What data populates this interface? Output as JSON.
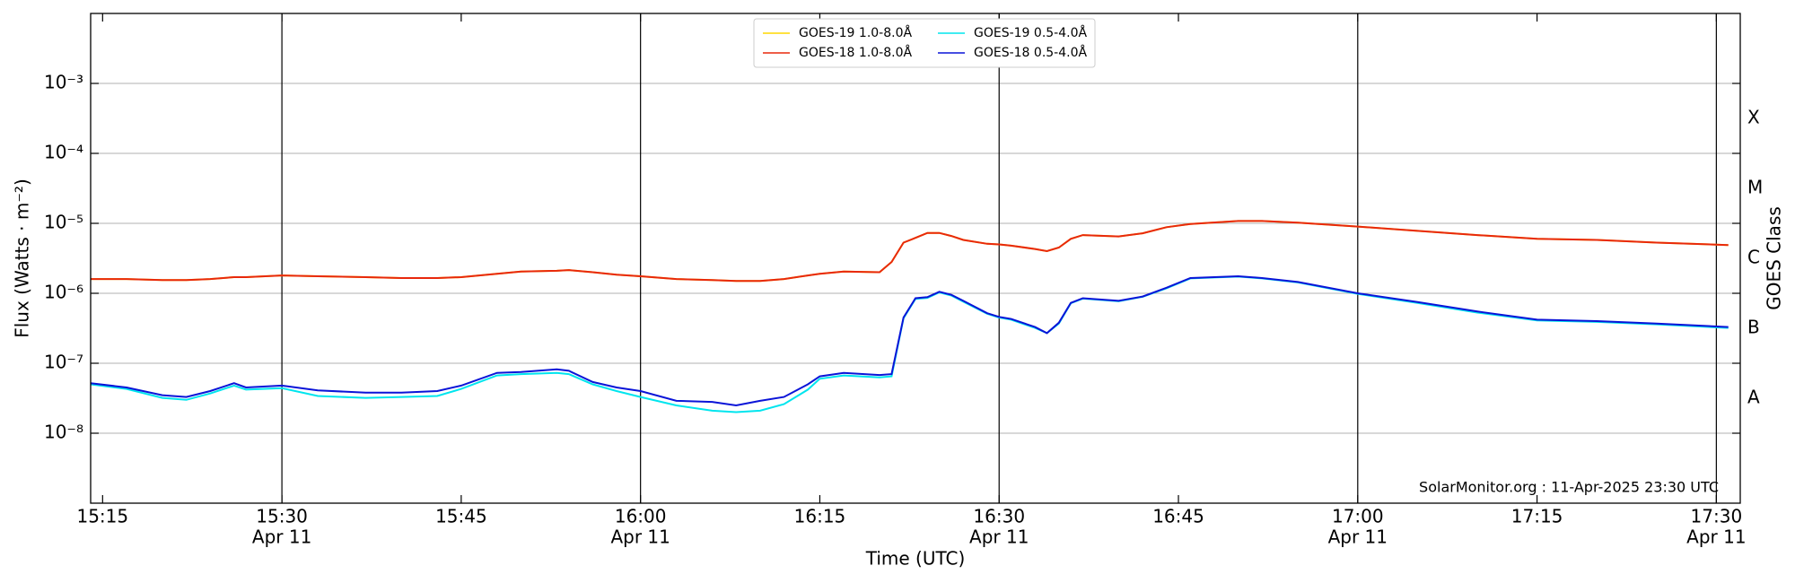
{
  "chart_data": {
    "type": "line",
    "y_label": "Flux (Watts · m⁻²)",
    "x_label": "Time (UTC)",
    "y2_label": "GOES Class",
    "annotation": "SolarMonitor.org : 11-Apr-2025 23:30 UTC",
    "log_y": true,
    "grid": true,
    "legend_position": "top-center",
    "xlim": [
      "15:14",
      "17:32"
    ],
    "xticks": [
      "15:15",
      "15:30",
      "15:45",
      "16:00",
      "16:15",
      "16:30",
      "16:45",
      "17:00",
      "17:15",
      "17:30"
    ],
    "xtick_dates": [
      null,
      "Apr 11",
      null,
      "Apr 11",
      null,
      "Apr 11",
      null,
      "Apr 11",
      null,
      "Apr 11"
    ],
    "ylim": [
      1e-09,
      0.01
    ],
    "yticks": [
      {
        "value": 1e-08,
        "label": "10⁻⁸"
      },
      {
        "value": 1e-07,
        "label": "10⁻⁷"
      },
      {
        "value": 1e-06,
        "label": "10⁻⁶"
      },
      {
        "value": 1e-05,
        "label": "10⁻⁵"
      },
      {
        "value": 0.0001,
        "label": "10⁻⁴"
      },
      {
        "value": 0.001,
        "label": "10⁻³"
      }
    ],
    "y2lim": [
      1e-09,
      0.01
    ],
    "y2ticks": [
      {
        "value": 3.16e-08,
        "label": "A"
      },
      {
        "value": 3.16e-07,
        "label": "B"
      },
      {
        "value": 3.16e-06,
        "label": "C"
      },
      {
        "value": 3.16e-05,
        "label": "M"
      },
      {
        "value": 0.000316,
        "label": "X"
      }
    ],
    "x": [
      "15:14",
      "15:17",
      "15:20",
      "15:22",
      "15:24",
      "15:26",
      "15:27",
      "15:30",
      "15:33",
      "15:37",
      "15:40",
      "15:43",
      "15:45",
      "15:48",
      "15:50",
      "15:53",
      "15:54",
      "15:56",
      "15:58",
      "16:00",
      "16:03",
      "16:06",
      "16:08",
      "16:10",
      "16:12",
      "16:14",
      "16:15",
      "16:17",
      "16:20",
      "16:21",
      "16:22",
      "16:23",
      "16:24",
      "16:25",
      "16:26",
      "16:27",
      "16:29",
      "16:30",
      "16:31",
      "16:33",
      "16:34",
      "16:35",
      "16:36",
      "16:37",
      "16:40",
      "16:42",
      "16:44",
      "16:46",
      "16:50",
      "16:52",
      "16:55",
      "17:00",
      "17:05",
      "17:10",
      "17:15",
      "17:20",
      "17:25",
      "17:31"
    ],
    "series": [
      {
        "name": "GOES-19 1.0-8.0Å",
        "color": "#ffd700",
        "values": [
          1.6e-06,
          1.6e-06,
          1.55e-06,
          1.55e-06,
          1.6e-06,
          1.7e-06,
          1.7e-06,
          1.8e-06,
          1.75e-06,
          1.7e-06,
          1.65e-06,
          1.65e-06,
          1.7e-06,
          1.9e-06,
          2.05e-06,
          2.1e-06,
          2.15e-06,
          2e-06,
          1.85e-06,
          1.75e-06,
          1.6e-06,
          1.55e-06,
          1.5e-06,
          1.5e-06,
          1.6e-06,
          1.8e-06,
          1.9e-06,
          2.05e-06,
          2e-06,
          2.8e-06,
          5.3e-06,
          6.2e-06,
          7.3e-06,
          7.3e-06,
          6.6e-06,
          5.8e-06,
          5.1e-06,
          5e-06,
          4.8e-06,
          4.3e-06,
          4e-06,
          4.5e-06,
          6e-06,
          6.8e-06,
          6.5e-06,
          7.2e-06,
          8.8e-06,
          9.8e-06,
          1.08e-05,
          1.08e-05,
          1.02e-05,
          9e-06,
          7.8e-06,
          6.8e-06,
          6e-06,
          5.8e-06,
          5.3e-06,
          4.9e-06
        ]
      },
      {
        "name": "GOES-18 1.0-8.0Å",
        "color": "#e8280c",
        "values": [
          1.6e-06,
          1.6e-06,
          1.55e-06,
          1.55e-06,
          1.6e-06,
          1.7e-06,
          1.7e-06,
          1.8e-06,
          1.75e-06,
          1.7e-06,
          1.65e-06,
          1.65e-06,
          1.7e-06,
          1.9e-06,
          2.05e-06,
          2.1e-06,
          2.15e-06,
          2e-06,
          1.85e-06,
          1.75e-06,
          1.6e-06,
          1.55e-06,
          1.5e-06,
          1.5e-06,
          1.6e-06,
          1.8e-06,
          1.9e-06,
          2.05e-06,
          2e-06,
          2.8e-06,
          5.3e-06,
          6.2e-06,
          7.3e-06,
          7.3e-06,
          6.6e-06,
          5.8e-06,
          5.1e-06,
          5e-06,
          4.8e-06,
          4.3e-06,
          4e-06,
          4.5e-06,
          6e-06,
          6.8e-06,
          6.5e-06,
          7.2e-06,
          8.8e-06,
          9.8e-06,
          1.08e-05,
          1.08e-05,
          1.02e-05,
          9e-06,
          7.8e-06,
          6.8e-06,
          6e-06,
          5.8e-06,
          5.3e-06,
          4.9e-06
        ]
      },
      {
        "name": "GOES-19 0.5-4.0Å",
        "color": "#00e5ee",
        "values": [
          5e-08,
          4.3e-08,
          3.2e-08,
          3e-08,
          3.7e-08,
          4.8e-08,
          4.2e-08,
          4.4e-08,
          3.4e-08,
          3.2e-08,
          3.3e-08,
          3.4e-08,
          4.3e-08,
          6.7e-08,
          7e-08,
          7.3e-08,
          7e-08,
          5e-08,
          4e-08,
          3.3e-08,
          2.5e-08,
          2.1e-08,
          2e-08,
          2.1e-08,
          2.6e-08,
          4.2e-08,
          6e-08,
          6.7e-08,
          6.3e-08,
          6.5e-08,
          4.4e-07,
          8.3e-07,
          8.6e-07,
          1.03e-06,
          9.3e-07,
          7.6e-07,
          5.1e-07,
          4.5e-07,
          4.2e-07,
          3.2e-07,
          2.7e-07,
          3.7e-07,
          7.2e-07,
          8.4e-07,
          7.7e-07,
          8.9e-07,
          1.18e-06,
          1.63e-06,
          1.73e-06,
          1.63e-06,
          1.43e-06,
          9.8e-07,
          7.3e-07,
          5.3e-07,
          4.1e-07,
          3.9e-07,
          3.6e-07,
          3.2e-07
        ]
      },
      {
        "name": "GOES-18 0.5-4.0Å",
        "color": "#0a14d8",
        "values": [
          5.2e-08,
          4.5e-08,
          3.5e-08,
          3.3e-08,
          4e-08,
          5.2e-08,
          4.5e-08,
          4.8e-08,
          4.1e-08,
          3.8e-08,
          3.8e-08,
          4e-08,
          4.8e-08,
          7.3e-08,
          7.5e-08,
          8.2e-08,
          7.8e-08,
          5.4e-08,
          4.5e-08,
          4e-08,
          2.9e-08,
          2.8e-08,
          2.5e-08,
          2.9e-08,
          3.3e-08,
          5e-08,
          6.5e-08,
          7.3e-08,
          6.8e-08,
          7e-08,
          4.5e-07,
          8.5e-07,
          8.8e-07,
          1.05e-06,
          9.5e-07,
          7.8e-07,
          5.2e-07,
          4.6e-07,
          4.3e-07,
          3.3e-07,
          2.7e-07,
          3.8e-07,
          7.3e-07,
          8.5e-07,
          7.8e-07,
          9e-07,
          1.2e-06,
          1.65e-06,
          1.75e-06,
          1.65e-06,
          1.45e-06,
          1e-06,
          7.5e-07,
          5.5e-07,
          4.2e-07,
          4e-07,
          3.7e-07,
          3.3e-07
        ]
      }
    ]
  }
}
